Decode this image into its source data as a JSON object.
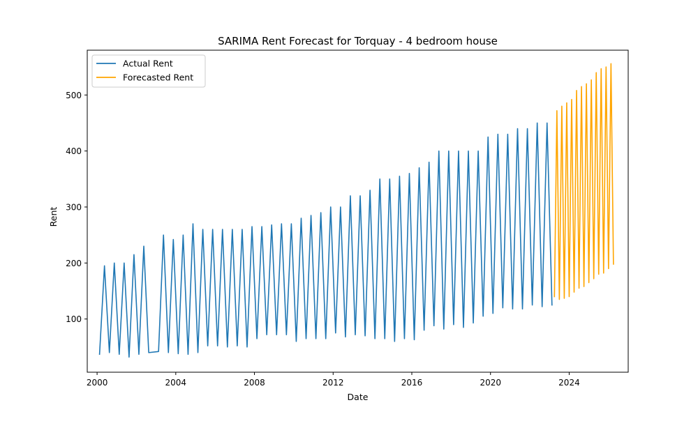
{
  "chart_data": {
    "type": "line",
    "title": "SARIMA Rent Forecast for Torquay - 4 bedroom house",
    "xlabel": "Date",
    "ylabel": "Rent",
    "xlim": [
      1999.5,
      2027.0
    ],
    "ylim": [
      5,
      580
    ],
    "x_ticks": [
      2000,
      2004,
      2008,
      2012,
      2016,
      2020,
      2024
    ],
    "y_ticks": [
      100,
      200,
      300,
      400,
      500
    ],
    "grid": false,
    "legend_placement": "top-left",
    "series": [
      {
        "name": "Actual Rent",
        "color": "#1f77b4",
        "x": [
          2000.125,
          2000.375,
          2000.625,
          2000.875,
          2001.125,
          2001.375,
          2001.625,
          2001.875,
          2002.125,
          2002.375,
          2002.625,
          2003.125,
          2003.375,
          2003.625,
          2003.875,
          2004.125,
          2004.375,
          2004.625,
          2004.875,
          2005.125,
          2005.375,
          2005.625,
          2005.875,
          2006.125,
          2006.375,
          2006.625,
          2006.875,
          2007.125,
          2007.375,
          2007.625,
          2007.875,
          2008.125,
          2008.375,
          2008.625,
          2008.875,
          2009.125,
          2009.375,
          2009.625,
          2009.875,
          2010.125,
          2010.375,
          2010.625,
          2010.875,
          2011.125,
          2011.375,
          2011.625,
          2011.875,
          2012.125,
          2012.375,
          2012.625,
          2012.875,
          2013.125,
          2013.375,
          2013.625,
          2013.875,
          2014.125,
          2014.375,
          2014.625,
          2014.875,
          2015.125,
          2015.375,
          2015.625,
          2015.875,
          2016.125,
          2016.375,
          2016.625,
          2016.875,
          2017.125,
          2017.375,
          2017.625,
          2017.875,
          2018.125,
          2018.375,
          2018.625,
          2018.875,
          2019.125,
          2019.375,
          2019.625,
          2019.875,
          2020.125,
          2020.375,
          2020.625,
          2020.875,
          2021.125,
          2021.375,
          2021.625,
          2021.875,
          2022.125,
          2022.375,
          2022.625,
          2022.875,
          2023.125
        ],
        "values": [
          37,
          195,
          40,
          200,
          37,
          200,
          32,
          215,
          37,
          230,
          40,
          42,
          250,
          40,
          242,
          38,
          250,
          37,
          270,
          40,
          260,
          52,
          260,
          52,
          260,
          50,
          260,
          52,
          260,
          50,
          265,
          65,
          265,
          72,
          268,
          72,
          270,
          72,
          270,
          60,
          280,
          65,
          285,
          65,
          290,
          65,
          300,
          75,
          300,
          68,
          320,
          72,
          320,
          70,
          330,
          65,
          350,
          65,
          350,
          60,
          355,
          65,
          360,
          63,
          370,
          80,
          380,
          88,
          400,
          82,
          400,
          90,
          400,
          85,
          400,
          93,
          400,
          105,
          425,
          110,
          430,
          120,
          430,
          118,
          440,
          118,
          440,
          125,
          450,
          122,
          450,
          125
        ]
      },
      {
        "name": "Forecasted Rent",
        "color": "#ffa500",
        "x": [
          2023.25,
          2023.375,
          2023.5,
          2023.625,
          2023.75,
          2023.875,
          2024.0,
          2024.125,
          2024.25,
          2024.375,
          2024.5,
          2024.625,
          2024.75,
          2024.875,
          2025.0,
          2025.125,
          2025.25,
          2025.375,
          2025.5,
          2025.625,
          2025.75,
          2025.875,
          2026.0,
          2026.125,
          2026.25
        ],
        "values": [
          140,
          472,
          135,
          480,
          137,
          486,
          140,
          492,
          148,
          508,
          155,
          515,
          158,
          520,
          165,
          527,
          172,
          540,
          180,
          547,
          182,
          550,
          190,
          556,
          198
        ]
      }
    ]
  }
}
